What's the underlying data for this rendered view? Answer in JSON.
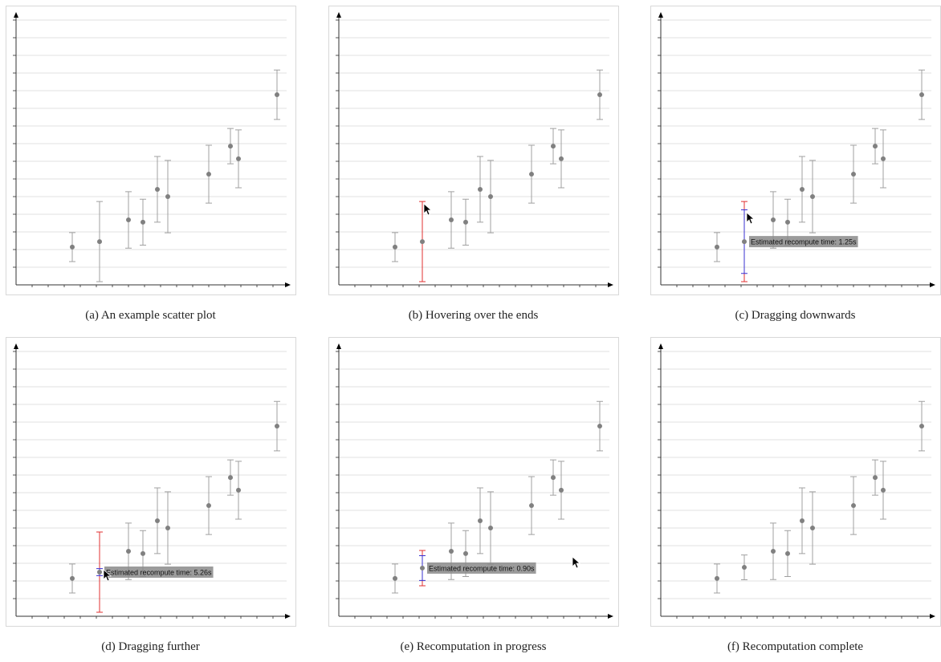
{
  "chart_data": [
    {
      "type": "scatter",
      "title": "(a) An example scatter plot",
      "x": [
        3.5,
        5.2,
        7,
        7.9,
        8.8,
        9.45,
        12,
        13.35,
        13.85,
        16.25
      ],
      "values": [
        2.14,
        2.45,
        3.68,
        3.55,
        5.41,
        5.0,
        6.27,
        7.86,
        7.14,
        10.77
      ],
      "errors": [
        0.82,
        2.27,
        1.6,
        1.3,
        1.86,
        2.05,
        1.64,
        1.0,
        1.64,
        1.4
      ],
      "color": "#808080",
      "xlim": [
        0,
        17
      ],
      "ylim": [
        0,
        15.5
      ],
      "xticks": [
        1,
        2,
        3,
        4,
        5,
        6,
        7,
        8,
        9,
        10,
        11,
        12,
        13,
        14,
        15,
        16
      ],
      "yticks": [
        1,
        2,
        3,
        4,
        5,
        6,
        7,
        8,
        9,
        10,
        11,
        12,
        13,
        14,
        15
      ],
      "grid": true
    },
    {
      "type": "scatter",
      "title": "(b) Hovering over the ends",
      "x": [
        3.5,
        5.2,
        7,
        7.9,
        8.8,
        9.45,
        12,
        13.35,
        13.85,
        16.25
      ],
      "values": [
        2.14,
        2.45,
        3.68,
        3.55,
        5.41,
        5.0,
        6.27,
        7.86,
        7.14,
        10.77
      ],
      "errors": [
        0.82,
        null,
        1.6,
        1.3,
        1.86,
        2.05,
        1.64,
        1.0,
        1.64,
        1.4
      ],
      "hover_errors": [
        null,
        2.27,
        null,
        null,
        null,
        null,
        null,
        null,
        null,
        null
      ],
      "hover_color": "#e03030",
      "color": "#808080",
      "xlim": [
        0,
        17
      ],
      "ylim": [
        0,
        15.5
      ],
      "xticks": [
        1,
        2,
        3,
        4,
        5,
        6,
        7,
        8,
        9,
        10,
        11,
        12,
        13,
        14,
        15,
        16
      ],
      "yticks": [
        1,
        2,
        3,
        4,
        5,
        6,
        7,
        8,
        9,
        10,
        11,
        12,
        13,
        14,
        15
      ],
      "grid": true
    },
    {
      "type": "scatter",
      "title": "(c) Dragging downwards",
      "x": [
        3.5,
        5.2,
        7,
        7.9,
        8.8,
        9.45,
        12,
        13.35,
        13.85,
        16.25
      ],
      "values": [
        2.14,
        2.45,
        3.68,
        3.55,
        5.41,
        5.0,
        6.27,
        7.86,
        7.14,
        10.77
      ],
      "errors": [
        0.82,
        null,
        1.6,
        1.3,
        1.86,
        2.05,
        1.64,
        1.0,
        1.64,
        1.4
      ],
      "hover_errors": [
        null,
        2.27,
        null,
        null,
        null,
        null,
        null,
        null,
        null,
        null
      ],
      "hover_color": "#e03030",
      "drag_errors": [
        null,
        1.8,
        null,
        null,
        null,
        null,
        null,
        null,
        null,
        null
      ],
      "drag_color": "#3a30d0",
      "tooltip": "Estimated recompute time: 1.25s",
      "color": "#808080",
      "xlim": [
        0,
        17
      ],
      "ylim": [
        0,
        15.5
      ],
      "xticks": [
        1,
        2,
        3,
        4,
        5,
        6,
        7,
        8,
        9,
        10,
        11,
        12,
        13,
        14,
        15,
        16
      ],
      "yticks": [
        1,
        2,
        3,
        4,
        5,
        6,
        7,
        8,
        9,
        10,
        11,
        12,
        13,
        14,
        15
      ],
      "grid": true
    },
    {
      "type": "scatter",
      "title": "(d) Dragging further",
      "x": [
        3.5,
        5.2,
        7,
        7.9,
        8.8,
        9.45,
        12,
        13.35,
        13.85,
        16.25
      ],
      "values": [
        2.14,
        2.5,
        3.68,
        3.55,
        5.41,
        5.0,
        6.27,
        7.86,
        7.14,
        10.77
      ],
      "errors": [
        0.82,
        null,
        1.6,
        1.3,
        1.86,
        2.05,
        1.64,
        1.0,
        1.64,
        1.4
      ],
      "hover_errors": [
        null,
        2.27,
        null,
        null,
        null,
        null,
        null,
        null,
        null,
        null
      ],
      "hover_color": "#e03030",
      "drag_errors": [
        null,
        0.2,
        null,
        null,
        null,
        null,
        null,
        null,
        null,
        null
      ],
      "drag_color": "#3a30d0",
      "tooltip": "Estimated recompute time: 5.26s",
      "color": "#808080",
      "xlim": [
        0,
        17
      ],
      "ylim": [
        0,
        15.5
      ],
      "xticks": [
        1,
        2,
        3,
        4,
        5,
        6,
        7,
        8,
        9,
        10,
        11,
        12,
        13,
        14,
        15,
        16
      ],
      "yticks": [
        1,
        2,
        3,
        4,
        5,
        6,
        7,
        8,
        9,
        10,
        11,
        12,
        13,
        14,
        15
      ],
      "grid": true
    },
    {
      "type": "scatter",
      "title": "(e) Recomputation in progress",
      "x": [
        3.5,
        5.2,
        7,
        7.9,
        8.8,
        9.45,
        12,
        13.35,
        13.85,
        16.25
      ],
      "values": [
        2.14,
        2.73,
        3.68,
        3.55,
        5.41,
        5.0,
        6.27,
        7.86,
        7.14,
        10.77
      ],
      "errors": [
        0.82,
        null,
        1.6,
        1.3,
        1.86,
        2.05,
        1.64,
        1.0,
        1.64,
        1.4
      ],
      "hover_errors": [
        null,
        1.0,
        null,
        null,
        null,
        null,
        null,
        null,
        null,
        null
      ],
      "hover_color": "#e03030",
      "drag_errors": [
        null,
        0.7,
        null,
        null,
        null,
        null,
        null,
        null,
        null,
        null
      ],
      "drag_color": "#3a30d0",
      "tooltip": "Estimated recompute time: 0.90s",
      "color": "#808080",
      "xlim": [
        0,
        17
      ],
      "ylim": [
        0,
        15.5
      ],
      "xticks": [
        1,
        2,
        3,
        4,
        5,
        6,
        7,
        8,
        9,
        10,
        11,
        12,
        13,
        14,
        15,
        16
      ],
      "yticks": [
        1,
        2,
        3,
        4,
        5,
        6,
        7,
        8,
        9,
        10,
        11,
        12,
        13,
        14,
        15
      ],
      "grid": true
    },
    {
      "type": "scatter",
      "title": "(f) Recomputation complete",
      "x": [
        3.5,
        5.2,
        7,
        7.9,
        8.8,
        9.45,
        12,
        13.35,
        13.85,
        16.25
      ],
      "values": [
        2.14,
        2.77,
        3.68,
        3.55,
        5.41,
        5.0,
        6.27,
        7.86,
        7.14,
        10.77
      ],
      "errors": [
        0.82,
        0.7,
        1.6,
        1.3,
        1.86,
        2.05,
        1.64,
        1.0,
        1.64,
        1.4
      ],
      "color": "#808080",
      "xlim": [
        0,
        17
      ],
      "ylim": [
        0,
        15.5
      ],
      "xticks": [
        1,
        2,
        3,
        4,
        5,
        6,
        7,
        8,
        9,
        10,
        11,
        12,
        13,
        14,
        15,
        16
      ],
      "yticks": [
        1,
        2,
        3,
        4,
        5,
        6,
        7,
        8,
        9,
        10,
        11,
        12,
        13,
        14,
        15
      ],
      "grid": true
    }
  ]
}
